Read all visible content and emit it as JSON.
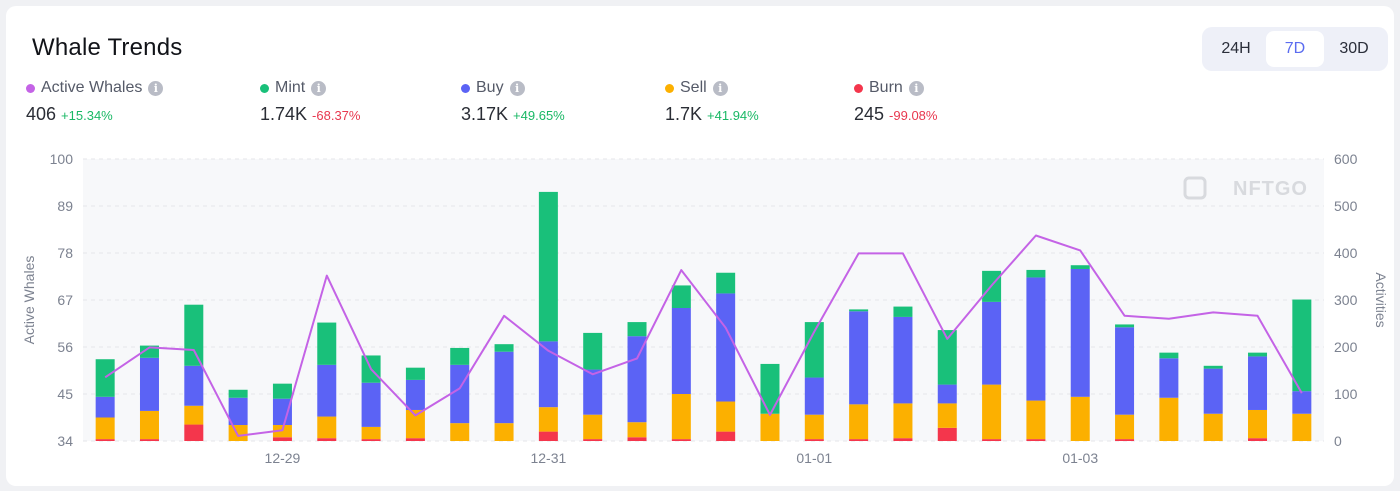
{
  "header": {
    "title": "Whale Trends"
  },
  "range": {
    "options": [
      "24H",
      "7D",
      "30D"
    ],
    "selected": "7D"
  },
  "metrics": [
    {
      "label": "Active Whales",
      "value": "406",
      "change": "+15.34%",
      "direction": "up",
      "color": "#c463e6"
    },
    {
      "label": "Mint",
      "value": "1.74K",
      "change": "-68.37%",
      "direction": "down",
      "color": "#19c07a"
    },
    {
      "label": "Buy",
      "value": "3.17K",
      "change": "+49.65%",
      "direction": "up",
      "color": "#5b63f5"
    },
    {
      "label": "Sell",
      "value": "1.7K",
      "change": "+41.94%",
      "direction": "up",
      "color": "#fcb000"
    },
    {
      "label": "Burn",
      "value": "245",
      "change": "-99.08%",
      "direction": "down",
      "color": "#f4364c"
    }
  ],
  "watermark": "NFTGO",
  "chart_data": {
    "type": "bar",
    "stacked": true,
    "ylabel": "Active Whales",
    "y2label": "Activities",
    "ylim": [
      34,
      100
    ],
    "y2lim": [
      0,
      600
    ],
    "yticks": [
      34,
      45,
      56,
      67,
      78,
      89,
      100
    ],
    "y2ticks": [
      0,
      100,
      200,
      300,
      400,
      500,
      600
    ],
    "xtick_labels": [
      {
        "index": 4,
        "label": "12-29"
      },
      {
        "index": 10,
        "label": "12-31"
      },
      {
        "index": 16,
        "label": "01-01"
      },
      {
        "index": 22,
        "label": "01-03"
      }
    ],
    "bar_count": 28,
    "bar_series": [
      {
        "name": "Burn",
        "color": "#f4364c",
        "values": [
          4,
          4,
          35,
          0,
          8,
          6,
          4,
          6,
          0,
          0,
          20,
          4,
          8,
          4,
          20,
          0,
          4,
          4,
          6,
          28,
          4,
          4,
          0,
          4,
          0,
          0,
          6,
          0
        ]
      },
      {
        "name": "Sell",
        "color": "#fcb000",
        "values": [
          46,
          60,
          40,
          34,
          26,
          46,
          26,
          60,
          38,
          38,
          52,
          52,
          32,
          96,
          64,
          58,
          52,
          74,
          74,
          52,
          116,
          82,
          94,
          52,
          92,
          58,
          60,
          58
        ]
      },
      {
        "name": "Buy",
        "color": "#5b63f5",
        "values": [
          44,
          113,
          85,
          58,
          56,
          110,
          94,
          64,
          124,
          152,
          140,
          96,
          183,
          183,
          230,
          0,
          79,
          198,
          184,
          40,
          176,
          262,
          272,
          186,
          84,
          96,
          114,
          48
        ]
      },
      {
        "name": "Mint",
        "color": "#19c07a",
        "values": [
          80,
          26,
          130,
          17,
          32,
          90,
          58,
          26,
          36,
          16,
          318,
          78,
          30,
          48,
          44,
          106,
          118,
          4,
          22,
          116,
          66,
          16,
          8,
          6,
          12,
          6,
          8,
          195
        ]
      }
    ],
    "line_series": {
      "name": "Active Whales",
      "color": "#c463e6",
      "values": [
        48.9,
        55.9,
        55.3,
        35.2,
        36.5,
        72.7,
        50.8,
        40.0,
        46.3,
        63.3,
        55.1,
        49.6,
        53.3,
        74.0,
        60.5,
        40.1,
        59.6,
        77.9,
        77.9,
        57.9,
        70.4,
        82.1,
        78.6,
        63.3,
        62.6,
        64.1,
        63.3,
        45.2
      ]
    }
  }
}
